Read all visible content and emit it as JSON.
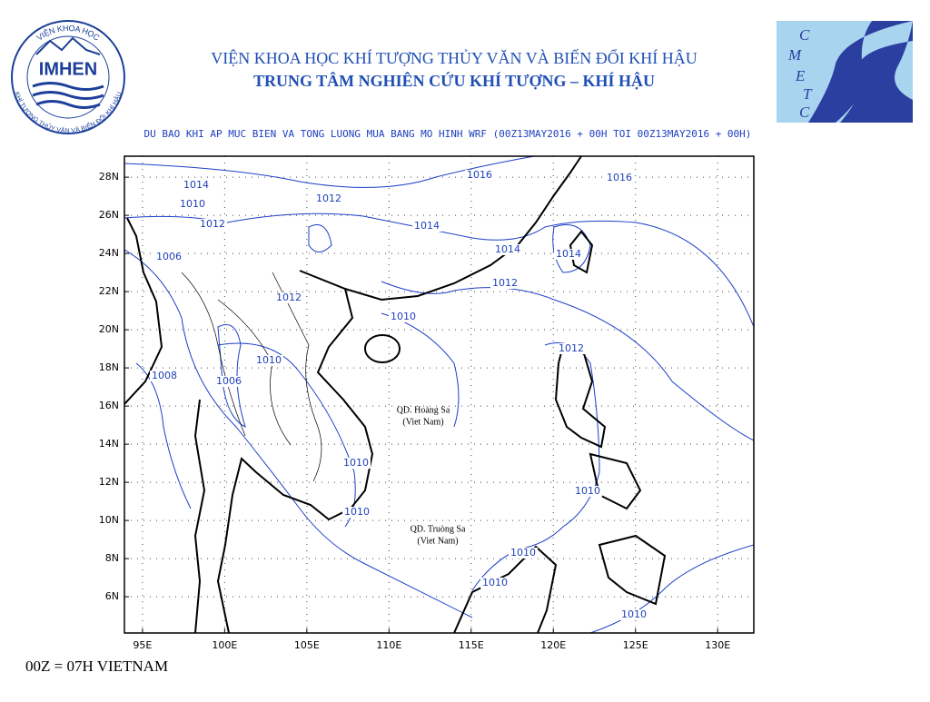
{
  "header": {
    "line1": "VIỆN KHOA HỌC KHÍ TƯỢNG THỦY VĂN VÀ BIẾN ĐỔI KHÍ HẬU",
    "line2": "TRUNG TÂM NGHIÊN CỨU KHÍ TƯỢNG – KHÍ HẬU",
    "left_logo": {
      "top": "VIỆN KHOA HỌC",
      "center": "IMHEN",
      "bottom": "KHÍ TƯỢNG THỦY VĂN VÀ BIẾN ĐỔI KHÍ HẬU"
    },
    "right_logo": {
      "letters": [
        "C",
        "M",
        "E",
        "T",
        "C"
      ]
    }
  },
  "map": {
    "title": "DU BAO KHI AP MUC BIEN VA TONG LUONG MUA BANG MO HINH WRF (00Z13MAY2016 + 00H TOI 00Z13MAY2016 + 00H)",
    "xlim": [
      93.9,
      132.2
    ],
    "ylim": [
      4.1,
      29.1
    ],
    "xticks": [
      {
        "value": 95,
        "label": "95E"
      },
      {
        "value": 100,
        "label": "100E"
      },
      {
        "value": 105,
        "label": "105E"
      },
      {
        "value": 110,
        "label": "110E"
      },
      {
        "value": 115,
        "label": "115E"
      },
      {
        "value": 120,
        "label": "120E"
      },
      {
        "value": 125,
        "label": "125E"
      },
      {
        "value": 130,
        "label": "130E"
      }
    ],
    "yticks": [
      {
        "value": 6,
        "label": "6N"
      },
      {
        "value": 8,
        "label": "8N"
      },
      {
        "value": 10,
        "label": "10N"
      },
      {
        "value": 12,
        "label": "12N"
      },
      {
        "value": 14,
        "label": "14N"
      },
      {
        "value": 16,
        "label": "16N"
      },
      {
        "value": 18,
        "label": "18N"
      },
      {
        "value": 20,
        "label": "20N"
      },
      {
        "value": 22,
        "label": "22N"
      },
      {
        "value": 24,
        "label": "24N"
      },
      {
        "value": 26,
        "label": "26N"
      },
      {
        "value": 28,
        "label": "28N"
      }
    ],
    "contour_labels": [
      1016,
      1016,
      1014,
      1010,
      1012,
      1012,
      1014,
      1014,
      1014,
      1006,
      1012,
      1012,
      1010,
      1012,
      1010,
      1008,
      1006,
      1010,
      1010,
      1010,
      1010,
      1010,
      1010
    ],
    "places": [
      [
        "QD. Hoàng Sa",
        "(Viet Nam)"
      ],
      [
        "QD. Truòng Sa",
        "(Viet Nam)"
      ]
    ]
  },
  "footer": "00Z = 07H VIETNAM"
}
